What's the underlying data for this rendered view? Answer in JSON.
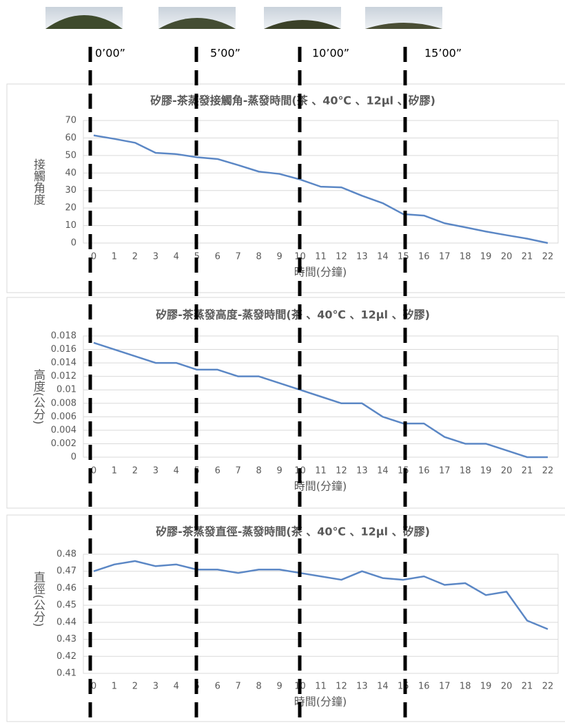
{
  "time_labels": [
    "0’00”",
    "5’00”",
    "10’00”",
    "15’00”"
  ],
  "chart_data": [
    {
      "type": "line",
      "title": "矽膠-茶蒸發接觸角-蒸發時間(茶 、40℃ 、12μl 、矽膠)",
      "x_label": "時間(分鐘)",
      "y_label": "接觸角度",
      "categories": [
        0,
        1,
        2,
        3,
        4,
        5,
        6,
        7,
        8,
        9,
        10,
        11,
        12,
        13,
        14,
        15,
        16,
        17,
        18,
        19,
        20,
        21,
        22
      ],
      "values": [
        61.5,
        59.5,
        57.3,
        51.5,
        50.8,
        49,
        48,
        44.5,
        40.8,
        39.5,
        36.3,
        32.2,
        31.8,
        27,
        22.8,
        16.5,
        15.7,
        11.3,
        9,
        6.6,
        4.5,
        2.5,
        0
      ],
      "color": "#5b87c5",
      "ylim": [
        0,
        70
      ],
      "yticks": [
        0,
        10,
        20,
        30,
        40,
        50,
        60,
        70
      ],
      "grid": true
    },
    {
      "type": "line",
      "title": "矽膠-茶蒸發高度-蒸發時間(茶 、40℃ 、12μl 、矽膠)",
      "x_label": "時間(分鐘)",
      "y_label": "高度(公分)",
      "categories": [
        0,
        1,
        2,
        3,
        4,
        5,
        6,
        7,
        8,
        9,
        10,
        11,
        12,
        13,
        14,
        15,
        16,
        17,
        18,
        19,
        20,
        21,
        22
      ],
      "values": [
        0.017,
        0.016,
        0.015,
        0.014,
        0.014,
        0.013,
        0.013,
        0.012,
        0.012,
        0.011,
        0.01,
        0.009,
        0.008,
        0.008,
        0.006,
        0.005,
        0.005,
        0.003,
        0.002,
        0.002,
        0.001,
        0,
        0
      ],
      "color": "#5b87c5",
      "ylim": [
        0,
        0.018
      ],
      "yticks": [
        0,
        0.002,
        0.004,
        0.006,
        0.008,
        0.01,
        0.012,
        0.014,
        0.016,
        0.018
      ],
      "grid": true
    },
    {
      "type": "line",
      "title": "矽膠-茶蒸發直徑-蒸發時間(茶 、40℃ 、12μl 、矽膠)",
      "x_label": "時間(分鐘)",
      "y_label": "直徑(公分)",
      "categories": [
        0,
        1,
        2,
        3,
        4,
        5,
        6,
        7,
        8,
        9,
        10,
        11,
        12,
        13,
        14,
        15,
        16,
        17,
        18,
        19,
        20,
        21,
        22
      ],
      "values": [
        0.47,
        0.474,
        0.476,
        0.473,
        0.474,
        0.471,
        0.471,
        0.469,
        0.471,
        0.471,
        0.469,
        0.467,
        0.465,
        0.47,
        0.466,
        0.465,
        0.467,
        0.462,
        0.463,
        0.456,
        0.458,
        0.441,
        0.436
      ],
      "color": "#5b87c5",
      "ylim": [
        0.41,
        0.48
      ],
      "yticks": [
        0.41,
        0.42,
        0.43,
        0.44,
        0.45,
        0.46,
        0.47,
        0.48
      ],
      "grid": true
    }
  ]
}
